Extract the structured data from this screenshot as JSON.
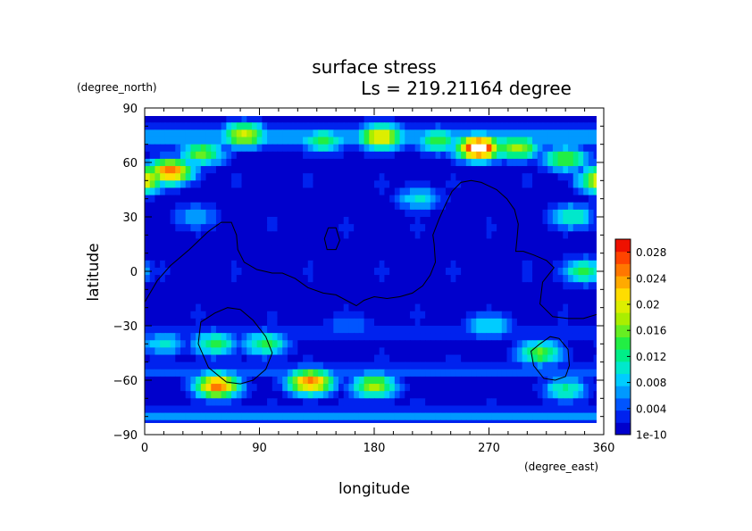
{
  "chart_data": {
    "type": "heatmap",
    "title": "surface stress",
    "subtitle": "Ls = 219.21164 degree",
    "xlabel": "longitude",
    "ylabel": "latitude",
    "x_units": "(degree_east)",
    "y_units": "(degree_north)",
    "xlim": [
      0,
      360
    ],
    "ylim": [
      -90,
      90
    ],
    "x_ticks": [
      0,
      90,
      180,
      270,
      360
    ],
    "y_ticks": [
      90,
      60,
      30,
      0,
      -30,
      -60,
      -90
    ],
    "colorbar": {
      "labels": [
        "0.028",
        "0.024",
        "0.02",
        "0.016",
        "0.012",
        "0.008",
        "0.004",
        "1e-10"
      ],
      "levels": [
        0.028,
        0.024,
        0.02,
        0.016,
        0.012,
        0.008,
        0.004,
        1e-10
      ],
      "vmin": 0,
      "vmax": 0.03,
      "colors": [
        "#0000cc",
        "#0022ee",
        "#0055ff",
        "#0099ff",
        "#00ccff",
        "#00e8cc",
        "#00ee88",
        "#22ee44",
        "#66ee22",
        "#aaee00",
        "#ddee00",
        "#ffdd00",
        "#ffaa00",
        "#ff7700",
        "#ff4400",
        "#ee1100"
      ],
      "above_max_color": "#ffffff"
    },
    "hotspots": [
      {
        "lon": 20,
        "lat": 55,
        "value": 0.026
      },
      {
        "lon": 0,
        "lat": 52,
        "value": 0.02
      },
      {
        "lon": 45,
        "lat": 65,
        "value": 0.016
      },
      {
        "lon": 78,
        "lat": 75,
        "value": 0.02
      },
      {
        "lon": 185,
        "lat": 74,
        "value": 0.022
      },
      {
        "lon": 140,
        "lat": 72,
        "value": 0.014
      },
      {
        "lon": 230,
        "lat": 72,
        "value": 0.014
      },
      {
        "lon": 262,
        "lat": 68,
        "value": 0.032
      },
      {
        "lon": 292,
        "lat": 68,
        "value": 0.018
      },
      {
        "lon": 330,
        "lat": 62,
        "value": 0.016
      },
      {
        "lon": 358,
        "lat": 50,
        "value": 0.022
      },
      {
        "lon": 57,
        "lat": -63,
        "value": 0.026
      },
      {
        "lon": 130,
        "lat": -61,
        "value": 0.026
      },
      {
        "lon": 180,
        "lat": -63,
        "value": 0.018
      },
      {
        "lon": 55,
        "lat": -40,
        "value": 0.014
      },
      {
        "lon": 95,
        "lat": -40,
        "value": 0.014
      },
      {
        "lon": 15,
        "lat": -40,
        "value": 0.01
      },
      {
        "lon": 310,
        "lat": -45,
        "value": 0.016
      },
      {
        "lon": 330,
        "lat": -65,
        "value": 0.012
      },
      {
        "lon": 345,
        "lat": 0,
        "value": 0.014
      },
      {
        "lon": 335,
        "lat": 30,
        "value": 0.012
      },
      {
        "lon": 215,
        "lat": 40,
        "value": 0.01
      },
      {
        "lon": 270,
        "lat": -30,
        "value": 0.01
      },
      {
        "lon": 40,
        "lat": 30,
        "value": 0.008
      },
      {
        "lon": 160,
        "lat": -30,
        "value": 0.006
      }
    ],
    "bands": [
      {
        "lat": 74,
        "value": 0.008
      },
      {
        "lat": -80,
        "value": 0.007
      },
      {
        "lat": -55,
        "value": 0.004
      },
      {
        "lat": -35,
        "value": 0.003
      }
    ],
    "topography_contours": [
      {
        "name": "northern-lowland-boundary",
        "points": [
          [
            0,
            -17
          ],
          [
            10,
            -5
          ],
          [
            20,
            3
          ],
          [
            35,
            12
          ],
          [
            50,
            22
          ],
          [
            60,
            27
          ],
          [
            68,
            27
          ],
          [
            72,
            20
          ],
          [
            73,
            12
          ],
          [
            78,
            5
          ],
          [
            88,
            1
          ],
          [
            100,
            -1
          ],
          [
            108,
            -1
          ],
          [
            118,
            -4
          ],
          [
            128,
            -9
          ],
          [
            140,
            -12
          ],
          [
            150,
            -13
          ],
          [
            158,
            -16
          ],
          [
            166,
            -19
          ],
          [
            172,
            -16
          ],
          [
            180,
            -14
          ],
          [
            190,
            -15
          ],
          [
            200,
            -14
          ],
          [
            210,
            -12
          ],
          [
            218,
            -8
          ],
          [
            224,
            -2
          ],
          [
            228,
            5
          ],
          [
            227,
            15
          ],
          [
            226,
            20
          ],
          [
            231,
            29
          ],
          [
            236,
            37
          ],
          [
            241,
            44
          ],
          [
            248,
            49
          ],
          [
            256,
            50
          ],
          [
            264,
            49
          ],
          [
            270,
            47
          ],
          [
            276,
            45
          ],
          [
            284,
            40
          ],
          [
            290,
            34
          ],
          [
            293,
            26
          ],
          [
            292,
            18
          ],
          [
            291,
            11
          ],
          [
            297,
            11
          ],
          [
            305,
            9
          ],
          [
            315,
            6
          ],
          [
            321,
            2
          ],
          [
            312,
            -6
          ],
          [
            310,
            -18
          ],
          [
            320,
            -25
          ],
          [
            332,
            -26
          ],
          [
            344,
            -26
          ],
          [
            358,
            -23
          ]
        ]
      },
      {
        "name": "hellas-basin",
        "points": [
          [
            75,
            -21
          ],
          [
            85,
            -27
          ],
          [
            95,
            -36
          ],
          [
            100,
            -45
          ],
          [
            95,
            -54
          ],
          [
            85,
            -60
          ],
          [
            75,
            -62
          ],
          [
            64,
            -61
          ],
          [
            50,
            -53
          ],
          [
            42,
            -40
          ],
          [
            44,
            -28
          ],
          [
            55,
            -23
          ],
          [
            65,
            -20
          ],
          [
            75,
            -21
          ]
        ]
      },
      {
        "name": "argyre-basin",
        "points": [
          [
            325,
            -37
          ],
          [
            332,
            -43
          ],
          [
            333,
            -52
          ],
          [
            330,
            -58
          ],
          [
            322,
            -60
          ],
          [
            313,
            -59
          ],
          [
            305,
            -52
          ],
          [
            303,
            -44
          ],
          [
            310,
            -40
          ],
          [
            318,
            -36
          ],
          [
            325,
            -37
          ]
        ]
      },
      {
        "name": "elysium-mons",
        "points": [
          [
            144,
            24
          ],
          [
            150,
            24
          ],
          [
            153,
            17
          ],
          [
            150,
            12
          ],
          [
            143,
            12
          ],
          [
            141,
            18
          ],
          [
            144,
            24
          ]
        ]
      }
    ]
  }
}
